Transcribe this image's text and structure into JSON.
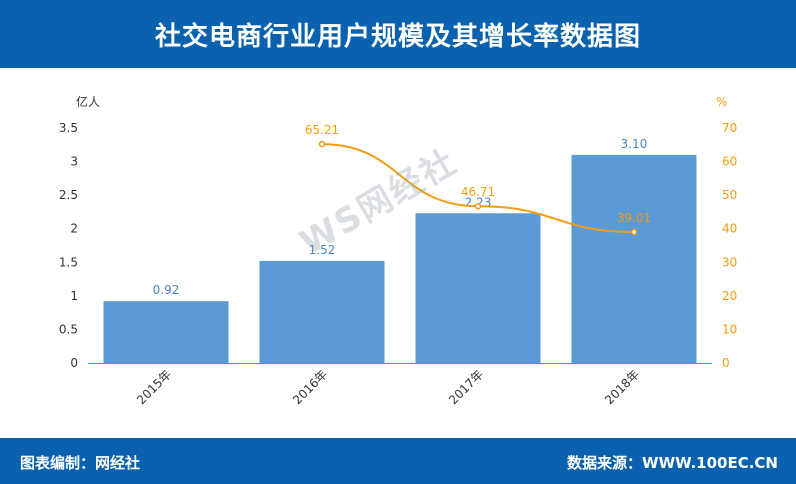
{
  "header": {
    "title": "社交电商行业用户规模及其增长率数据图"
  },
  "footer": {
    "left": "图表编制：网经社",
    "right": "数据来源：WWW.100EC.CN"
  },
  "watermark": {
    "text": "WS网经社"
  },
  "colors": {
    "header_bg": "#0a62ae",
    "bar": "#5b9bd5",
    "bar_label": "#4a86c4",
    "line": "#f39c12",
    "axis_text": "#333333"
  },
  "chart_data": {
    "type": "bar",
    "categories": [
      "2015年",
      "2016年",
      "2017年",
      "2018年"
    ],
    "series": [
      {
        "type": "bar",
        "axis": "left",
        "values": [
          0.92,
          1.52,
          2.23,
          3.1
        ],
        "labels": [
          "0.92",
          "1.52",
          "2.23",
          "3.10"
        ]
      },
      {
        "type": "line",
        "axis": "right",
        "values": [
          null,
          65.21,
          46.71,
          39.01
        ],
        "labels": [
          "",
          "65.21",
          "46.71",
          "39.01"
        ]
      }
    ],
    "y_left": {
      "unit": "亿人",
      "min": 0,
      "max": 3.5,
      "ticks": [
        "0",
        "0.5",
        "1",
        "1.5",
        "2",
        "2.5",
        "3",
        "3.5"
      ]
    },
    "y_right": {
      "unit": "%",
      "min": 0,
      "max": 70,
      "ticks": [
        "0",
        "10",
        "20",
        "30",
        "40",
        "50",
        "60",
        "70"
      ]
    },
    "grid": false
  }
}
